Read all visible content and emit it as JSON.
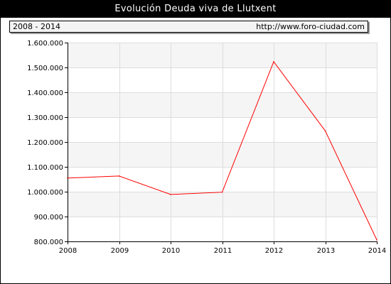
{
  "title": "Evolución Deuda viva de Llutxent",
  "subtitle": {
    "period": "2008 - 2014",
    "source": "http://www.foro-ciudad.com"
  },
  "colors": {
    "line": "#ff0000",
    "band": "#f5f5f5",
    "grid": "#dddddd"
  },
  "chart_data": {
    "type": "line",
    "title": "Evolución Deuda viva de Llutxent",
    "xlabel": "",
    "ylabel": "",
    "x": [
      2008,
      2009,
      2010,
      2011,
      2012,
      2013,
      2014
    ],
    "x_tick_labels": [
      "2008",
      "2009",
      "2010",
      "2011",
      "2012",
      "2013",
      "2014"
    ],
    "series": [
      {
        "values": [
          1055000,
          1063000,
          989000,
          998000,
          1523000,
          1245000,
          806000
        ]
      }
    ],
    "ylim": [
      800000,
      1600000
    ],
    "y_ticks": [
      800000,
      900000,
      1000000,
      1100000,
      1200000,
      1300000,
      1400000,
      1500000,
      1600000
    ],
    "y_tick_labels": [
      "800.000",
      "900.000",
      "1.000.000",
      "1.100.000",
      "1.200.000",
      "1.300.000",
      "1.400.000",
      "1.500.000",
      "1.600.000"
    ],
    "grid": true,
    "legend": "none"
  }
}
